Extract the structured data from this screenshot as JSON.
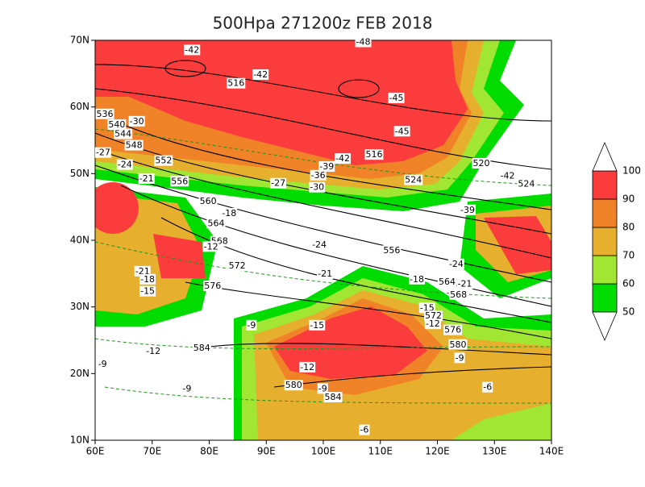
{
  "title": "500Hpa 271200z FEB 2018",
  "map": {
    "xlim": [
      60,
      140
    ],
    "xticks": [
      {
        "value": 60,
        "label": "60E"
      },
      {
        "value": 70,
        "label": "70E"
      },
      {
        "value": 80,
        "label": "80E"
      },
      {
        "value": 90,
        "label": "90E"
      },
      {
        "value": 100,
        "label": "100E"
      },
      {
        "value": 110,
        "label": "110E"
      },
      {
        "value": 120,
        "label": "120E"
      },
      {
        "value": 130,
        "label": "130E"
      },
      {
        "value": 140,
        "label": "140E"
      }
    ],
    "ylim": [
      10,
      70
    ],
    "yticks": [
      {
        "value": 10,
        "label": "10N"
      },
      {
        "value": 20,
        "label": "20N"
      },
      {
        "value": 30,
        "label": "30N"
      },
      {
        "value": 40,
        "label": "40N"
      },
      {
        "value": 50,
        "label": "50N"
      },
      {
        "value": 60,
        "label": "60N"
      },
      {
        "value": 70,
        "label": "70N"
      }
    ]
  },
  "colorbar": {
    "levels": [
      50,
      60,
      70,
      80,
      90,
      100
    ],
    "colors": [
      "#00dc00",
      "#a0e632",
      "#e6af2d",
      "#f08228",
      "#fa3c3c"
    ]
  },
  "contour_labels": [
    {
      "text": "-48",
      "lon": 107,
      "lat": 69.7
    },
    {
      "text": "-42",
      "lon": 77,
      "lat": 68.5
    },
    {
      "text": "516",
      "lon": 84.7,
      "lat": 63.5
    },
    {
      "text": "-42",
      "lon": 89,
      "lat": 64.8
    },
    {
      "text": "-45",
      "lon": 112.8,
      "lat": 61.3
    },
    {
      "text": "-45",
      "lon": 113.8,
      "lat": 56.3
    },
    {
      "text": "536",
      "lon": 61.7,
      "lat": 58.9
    },
    {
      "text": "540",
      "lon": 63.8,
      "lat": 57.3
    },
    {
      "text": "-30",
      "lon": 67.3,
      "lat": 57.8
    },
    {
      "text": "544",
      "lon": 64.9,
      "lat": 55.9
    },
    {
      "text": "548",
      "lon": 66.8,
      "lat": 54.2
    },
    {
      "text": "-27",
      "lon": 61.4,
      "lat": 53.1
    },
    {
      "text": "-24",
      "lon": 65.2,
      "lat": 51.3
    },
    {
      "text": "552",
      "lon": 72,
      "lat": 51.9
    },
    {
      "text": "-21",
      "lon": 69,
      "lat": 49.2
    },
    {
      "text": "556",
      "lon": 74.8,
      "lat": 48.8
    },
    {
      "text": "560",
      "lon": 79.8,
      "lat": 45.8
    },
    {
      "text": "-18",
      "lon": 83.5,
      "lat": 44
    },
    {
      "text": "564",
      "lon": 81.2,
      "lat": 42.5
    },
    {
      "text": "568",
      "lon": 81.8,
      "lat": 39.8
    },
    {
      "text": "-12",
      "lon": 80.3,
      "lat": 39
    },
    {
      "text": "572",
      "lon": 84.9,
      "lat": 36.1
    },
    {
      "text": "576",
      "lon": 80.6,
      "lat": 33.1
    },
    {
      "text": "-21",
      "lon": 68.3,
      "lat": 35.3
    },
    {
      "text": "-18",
      "lon": 69.2,
      "lat": 34.1
    },
    {
      "text": "-15",
      "lon": 69.2,
      "lat": 32.3
    },
    {
      "text": "-42",
      "lon": 103.4,
      "lat": 52.2
    },
    {
      "text": "516",
      "lon": 108.9,
      "lat": 52.8
    },
    {
      "text": "-39",
      "lon": 100.6,
      "lat": 51
    },
    {
      "text": "-36",
      "lon": 99.1,
      "lat": 49.7
    },
    {
      "text": "-27",
      "lon": 92.1,
      "lat": 48.5
    },
    {
      "text": "-30",
      "lon": 98.9,
      "lat": 47.9
    },
    {
      "text": "524",
      "lon": 115.8,
      "lat": 49
    },
    {
      "text": "520",
      "lon": 127.7,
      "lat": 51.5
    },
    {
      "text": "-42",
      "lon": 132.3,
      "lat": 49.6
    },
    {
      "text": "524",
      "lon": 135.6,
      "lat": 48.4
    },
    {
      "text": "-39",
      "lon": 125.3,
      "lat": 44.5
    },
    {
      "text": "-24",
      "lon": 99.3,
      "lat": 39.3
    },
    {
      "text": "556",
      "lon": 112,
      "lat": 38.4
    },
    {
      "text": "-24",
      "lon": 123.3,
      "lat": 36.4
    },
    {
      "text": "-21",
      "lon": 100.3,
      "lat": 34.9
    },
    {
      "text": "-18",
      "lon": 116.4,
      "lat": 34.1
    },
    {
      "text": "564",
      "lon": 121.7,
      "lat": 33.7
    },
    {
      "text": "-21",
      "lon": 124.8,
      "lat": 33.4
    },
    {
      "text": "568",
      "lon": 123.7,
      "lat": 31.8
    },
    {
      "text": "-15",
      "lon": 118.2,
      "lat": 29.8
    },
    {
      "text": "572",
      "lon": 119.3,
      "lat": 28.6
    },
    {
      "text": "-12",
      "lon": 119.2,
      "lat": 27.4
    },
    {
      "text": "576",
      "lon": 122.7,
      "lat": 26.5
    },
    {
      "text": "-9",
      "lon": 87.4,
      "lat": 27.2
    },
    {
      "text": "-15",
      "lon": 98.9,
      "lat": 27.2
    },
    {
      "text": "580",
      "lon": 123.6,
      "lat": 24.3
    },
    {
      "text": "-9",
      "lon": 123.9,
      "lat": 22.3
    },
    {
      "text": "-12",
      "lon": 70.2,
      "lat": 23.3
    },
    {
      "text": "584",
      "lon": 78.7,
      "lat": 23.8
    },
    {
      "text": "-9",
      "lon": 61.3,
      "lat": 21.4
    },
    {
      "text": "-12",
      "lon": 97.2,
      "lat": 20.9
    },
    {
      "text": "-9",
      "lon": 76.1,
      "lat": 17.7
    },
    {
      "text": "580",
      "lon": 94.8,
      "lat": 18.2
    },
    {
      "text": "-9",
      "lon": 99.9,
      "lat": 17.7
    },
    {
      "text": "584",
      "lon": 101.7,
      "lat": 16.4
    },
    {
      "text": "-6",
      "lon": 128.8,
      "lat": 17.9
    },
    {
      "text": "-6",
      "lon": 107.2,
      "lat": 11.5
    }
  ]
}
